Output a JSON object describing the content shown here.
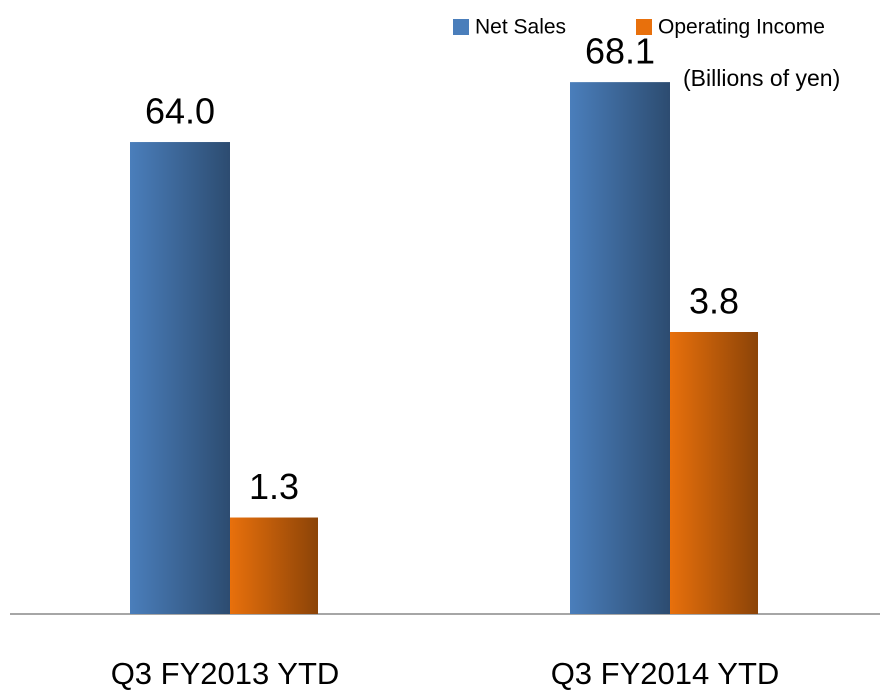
{
  "chart_data": {
    "type": "bar",
    "annotation": "(Billions of yen)",
    "categories": [
      "Q3 FY2013 YTD",
      "Q3 FY2014 YTD"
    ],
    "series": [
      {
        "name": "Net Sales",
        "color": "#4a7ebb",
        "values": [
          64.0,
          68.1
        ],
        "value_labels": [
          "64.0",
          "68.1"
        ]
      },
      {
        "name": "Operating Income",
        "color": "#e8700c",
        "values": [
          1.3,
          3.8
        ],
        "value_labels": [
          "1.3",
          "3.8"
        ],
        "axis": "y2"
      }
    ],
    "ylim": [
      31.7,
      70.3
    ],
    "y2lim": [
      0,
      7.6
    ],
    "legend": "top-right",
    "grid": false
  }
}
